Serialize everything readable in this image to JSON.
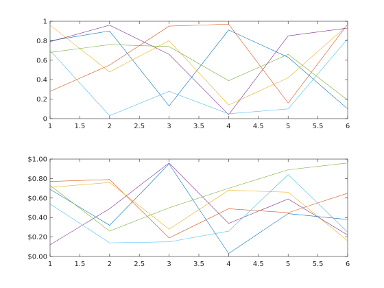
{
  "chart_data": [
    {
      "type": "line",
      "x": [
        1,
        2,
        3,
        4,
        5,
        6
      ],
      "xlim": [
        1,
        6
      ],
      "ylim": [
        0,
        1
      ],
      "xticks": [
        "1",
        "1.5",
        "2",
        "2.5",
        "3",
        "3.5",
        "4",
        "4.5",
        "5",
        "5.5",
        "6"
      ],
      "xtick_values": [
        1,
        1.5,
        2,
        2.5,
        3,
        3.5,
        4,
        4.5,
        5,
        5.5,
        6
      ],
      "yticks": [
        "0",
        "0.2",
        "0.4",
        "0.6",
        "0.8",
        "1"
      ],
      "ytick_values": [
        0,
        0.2,
        0.4,
        0.6,
        0.8,
        1
      ],
      "grid": false,
      "series": [
        {
          "color": "#0072BD",
          "values": [
            0.8,
            0.9,
            0.13,
            0.91,
            0.63,
            0.1
          ]
        },
        {
          "color": "#D95319",
          "values": [
            0.28,
            0.55,
            0.95,
            0.97,
            0.16,
            0.97
          ]
        },
        {
          "color": "#EDB120",
          "values": [
            0.96,
            0.48,
            0.8,
            0.14,
            0.42,
            0.96
          ]
        },
        {
          "color": "#7E2F8E",
          "values": [
            0.79,
            0.96,
            0.66,
            0.04,
            0.85,
            0.93
          ]
        },
        {
          "color": "#77AC30",
          "values": [
            0.68,
            0.76,
            0.74,
            0.39,
            0.66,
            0.19
          ]
        },
        {
          "color": "#4DBEEE",
          "values": [
            0.7,
            0.03,
            0.28,
            0.05,
            0.1,
            0.82
          ]
        }
      ]
    },
    {
      "type": "line",
      "x": [
        1,
        2,
        3,
        4,
        5,
        6
      ],
      "xlim": [
        1,
        6
      ],
      "ylim": [
        0,
        1
      ],
      "xticks": [
        "1",
        "1.5",
        "2",
        "2.5",
        "3",
        "3.5",
        "4",
        "4.5",
        "5",
        "5.5",
        "6"
      ],
      "xtick_values": [
        1,
        1.5,
        2,
        2.5,
        3,
        3.5,
        4,
        4.5,
        5,
        5.5,
        6
      ],
      "yticks": [
        "$0.00",
        "$0.20",
        "$0.40",
        "$0.60",
        "$0.80",
        "$1.00"
      ],
      "ytick_values": [
        0,
        0.2,
        0.4,
        0.6,
        0.8,
        1
      ],
      "grid": false,
      "series": [
        {
          "color": "#0072BD",
          "values": [
            0.69,
            0.32,
            0.95,
            0.03,
            0.44,
            0.38
          ]
        },
        {
          "color": "#D95319",
          "values": [
            0.77,
            0.79,
            0.19,
            0.49,
            0.45,
            0.65
          ]
        },
        {
          "color": "#EDB120",
          "values": [
            0.71,
            0.76,
            0.28,
            0.68,
            0.66,
            0.16
          ]
        },
        {
          "color": "#7E2F8E",
          "values": [
            0.12,
            0.49,
            0.96,
            0.34,
            0.59,
            0.22
          ]
        },
        {
          "color": "#77AC30",
          "values": [
            0.73,
            0.26,
            0.5,
            0.7,
            0.89,
            0.96
          ]
        },
        {
          "color": "#4DBEEE",
          "values": [
            0.54,
            0.14,
            0.15,
            0.26,
            0.84,
            0.25
          ]
        }
      ]
    }
  ]
}
